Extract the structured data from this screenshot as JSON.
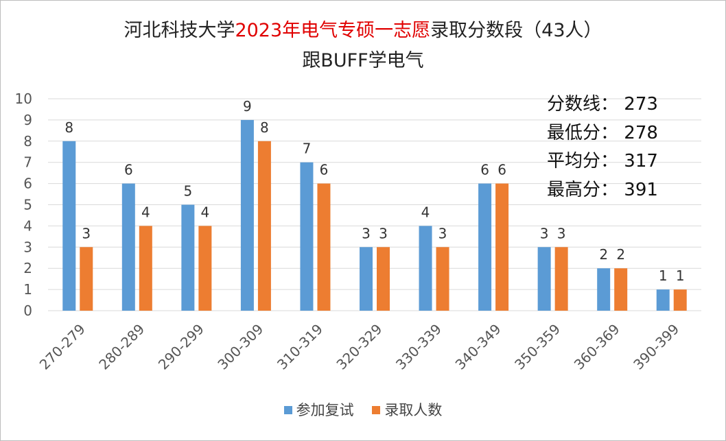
{
  "title": {
    "part1": "河北科技大学",
    "part2": "2023年电气专硕一志愿",
    "part3": "录取分数段（43人）",
    "subtitle": "跟BUFF学电气"
  },
  "stats": [
    {
      "label": "分数线：",
      "value": "273"
    },
    {
      "label": "最低分：",
      "value": "278"
    },
    {
      "label": "平均分：",
      "value": "317"
    },
    {
      "label": "最高分：",
      "value": "391"
    }
  ],
  "colors": {
    "series1": "#5b9bd5",
    "series2": "#ed7d31",
    "title_red": "#e00000",
    "grid": "#d9d9d9"
  },
  "chart_data": {
    "type": "bar",
    "categories": [
      "270-279",
      "280-289",
      "290-299",
      "300-309",
      "310-319",
      "320-329",
      "330-339",
      "340-349",
      "350-359",
      "360-369",
      "390-399"
    ],
    "series": [
      {
        "name": "参加复试",
        "values": [
          8,
          6,
          5,
          9,
          7,
          3,
          4,
          6,
          3,
          2,
          1
        ]
      },
      {
        "name": "录取人数",
        "values": [
          3,
          4,
          4,
          8,
          6,
          3,
          3,
          6,
          3,
          2,
          1
        ]
      }
    ],
    "yticks": [
      0,
      1,
      2,
      3,
      4,
      5,
      6,
      7,
      8,
      9,
      10
    ],
    "ylim": [
      0,
      10
    ],
    "grid": true,
    "legend": "bottom"
  }
}
